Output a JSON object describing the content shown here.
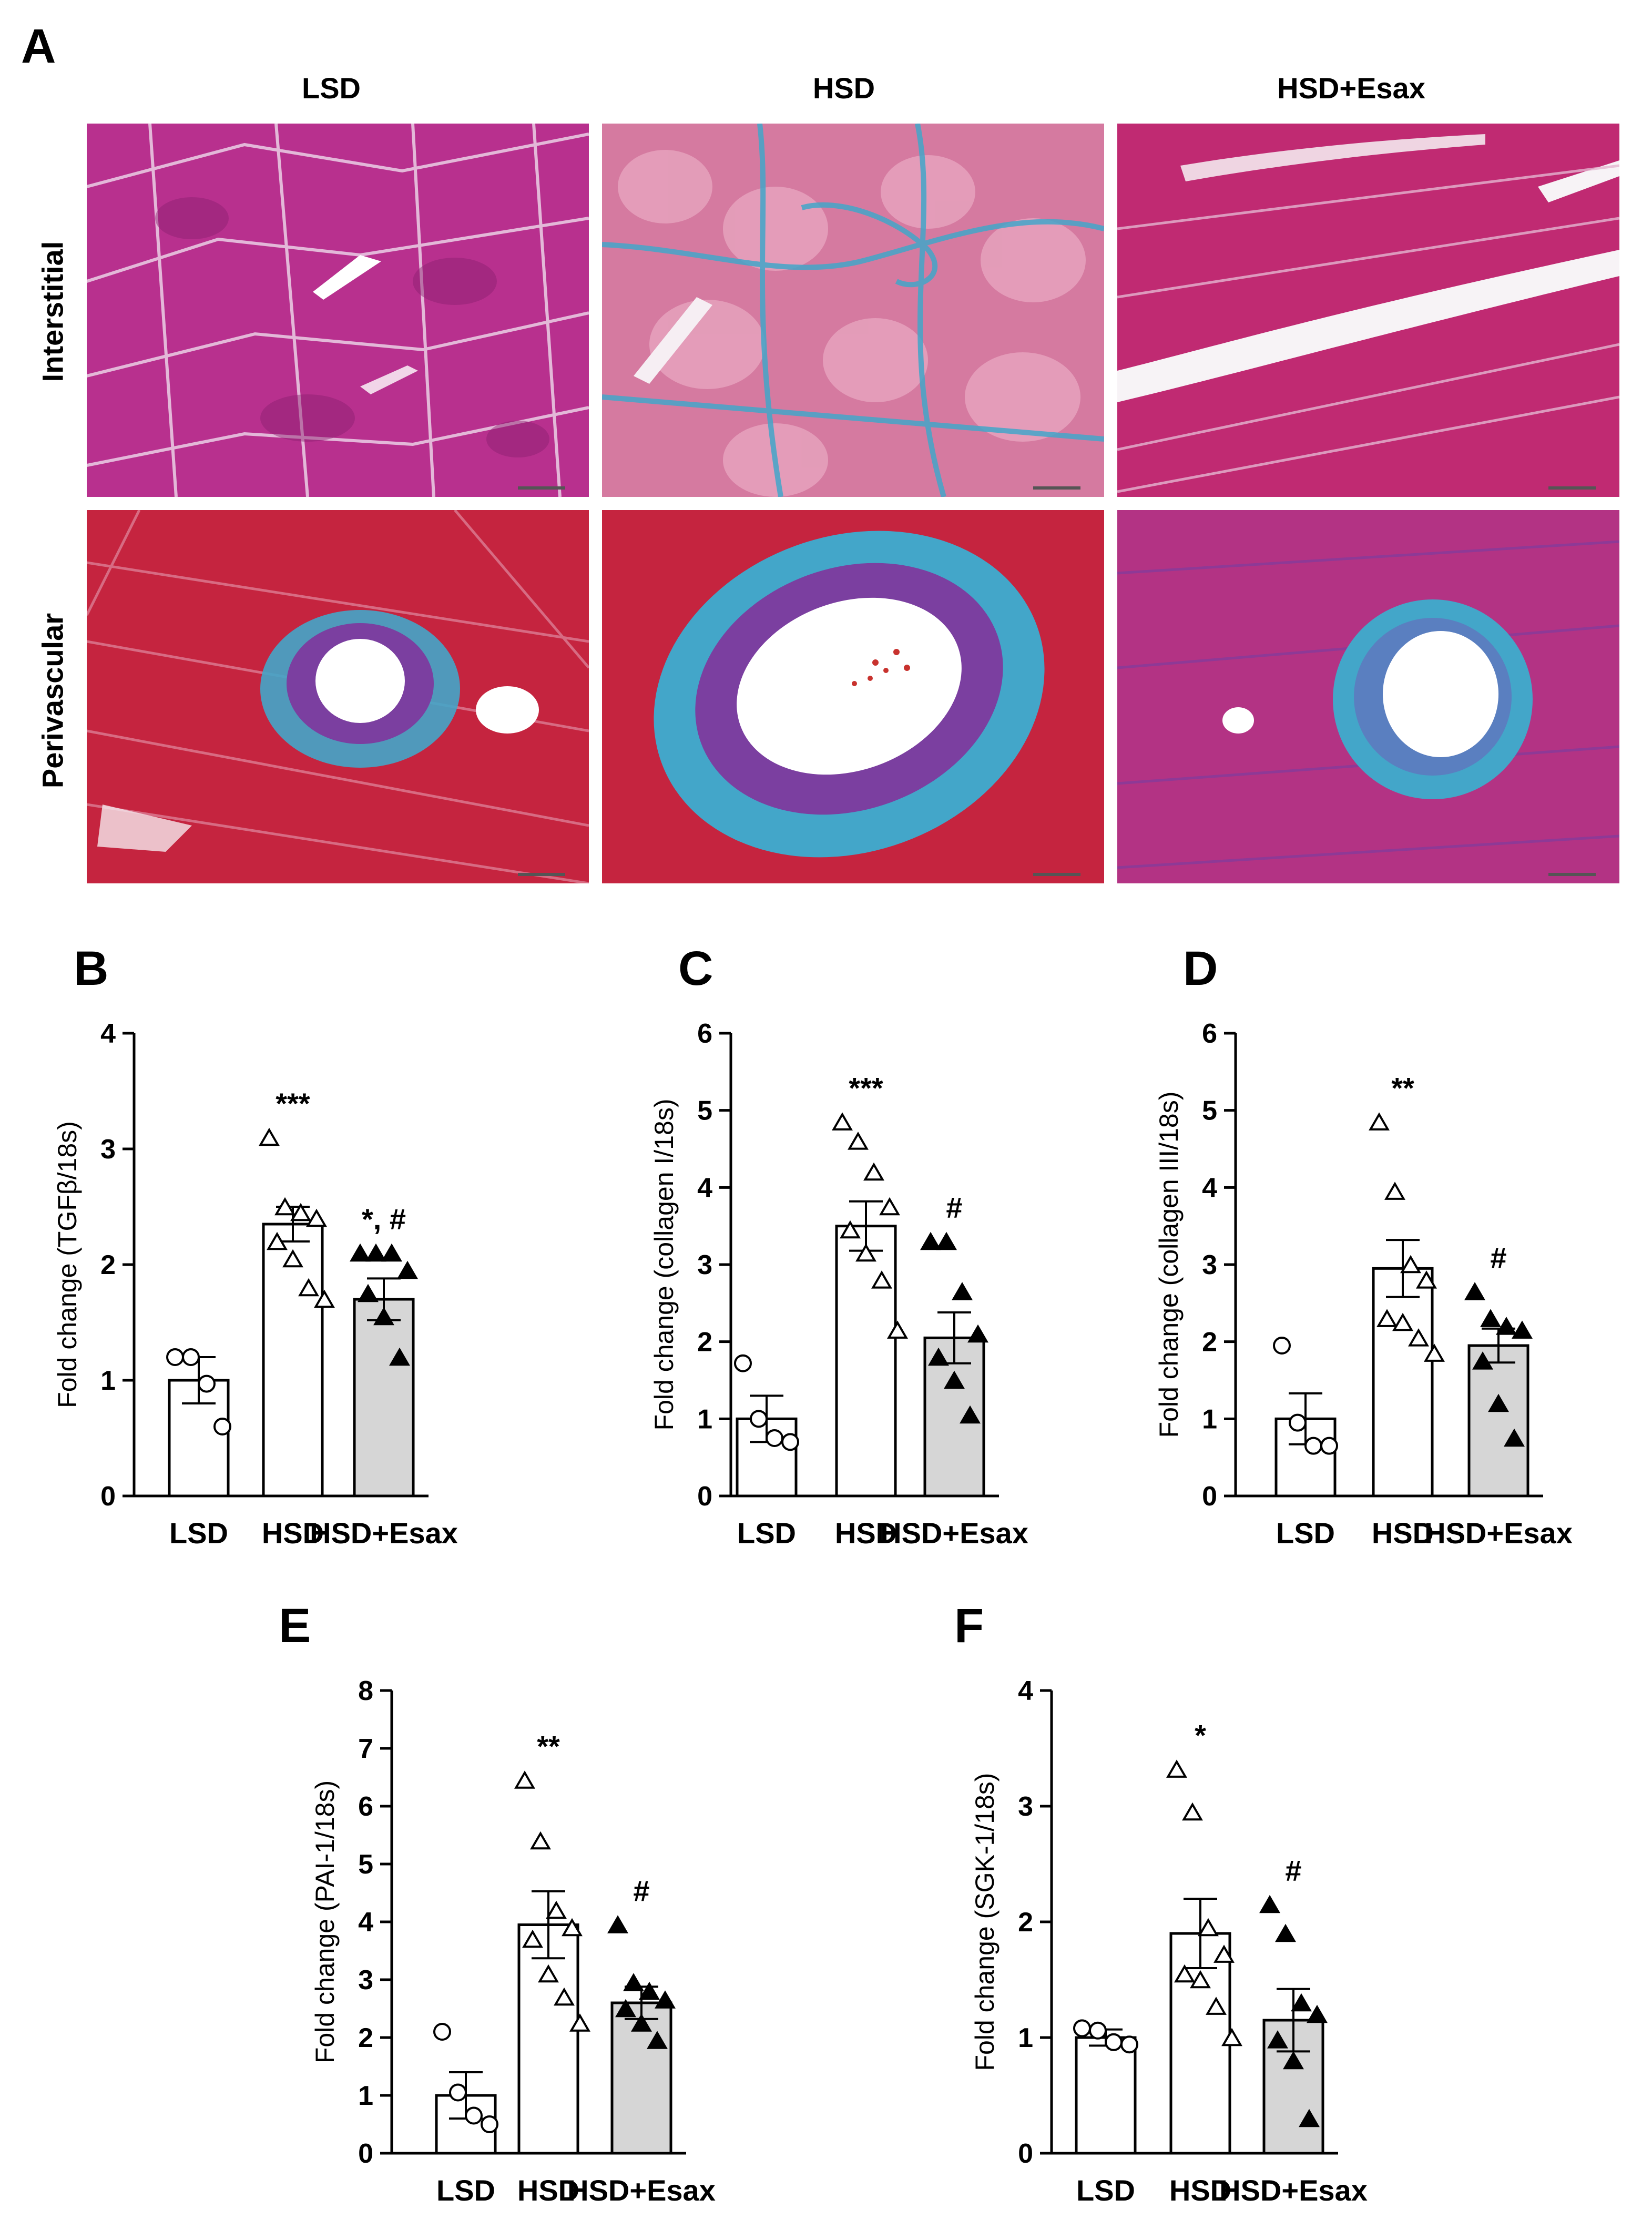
{
  "panel_letters": {
    "a": "A",
    "b": "B",
    "c": "C",
    "d": "D",
    "e": "E",
    "f": "F"
  },
  "micrograph": {
    "columns": [
      "LSD",
      "HSD",
      "HSD+Esax"
    ],
    "rows": [
      "Interstitial",
      "Perivascular"
    ]
  },
  "colors": {
    "muscle_magenta": "#b8308e",
    "muscle_red": "#c5243f",
    "collagen_blue": "#43a6c9",
    "bar_gray": "#d6d6d6"
  },
  "chart_data": [
    {
      "panel": "B",
      "type": "bar",
      "categories": [
        "LSD",
        "HSD",
        "HSD+Esax"
      ],
      "ylabel": "Fold change (TGFβ/18s)",
      "ylim": [
        0,
        4
      ],
      "yticks": [
        0,
        1,
        2,
        3,
        4
      ],
      "means": [
        1.0,
        2.35,
        1.7
      ],
      "sem": [
        0.2,
        0.15,
        0.18
      ],
      "points": [
        [
          1.2,
          1.2,
          0.97,
          0.6
        ],
        [
          3.1,
          2.5,
          2.45,
          2.4,
          2.2,
          2.05,
          1.8,
          1.7
        ],
        [
          2.1,
          2.1,
          2.1,
          1.95,
          1.75,
          1.55,
          1.2
        ]
      ],
      "significance": [
        "",
        "***",
        "*, #"
      ]
    },
    {
      "panel": "C",
      "type": "bar",
      "categories": [
        "LSD",
        "HSD",
        "HSD+Esax"
      ],
      "ylabel": "Fold change (collagen I/18s)",
      "ylim": [
        0,
        6
      ],
      "yticks": [
        0,
        1,
        2,
        3,
        4,
        5,
        6
      ],
      "means": [
        1.0,
        3.5,
        2.05
      ],
      "sem": [
        0.3,
        0.32,
        0.33
      ],
      "points": [
        [
          1.72,
          1.0,
          0.75,
          0.7
        ],
        [
          4.85,
          4.6,
          4.2,
          3.75,
          3.45,
          3.15,
          2.8,
          2.15
        ],
        [
          3.3,
          3.3,
          2.65,
          2.1,
          1.8,
          1.5,
          1.05
        ]
      ],
      "significance": [
        "",
        "***",
        "#"
      ]
    },
    {
      "panel": "D",
      "type": "bar",
      "categories": [
        "LSD",
        "HSD",
        "HSD+Esax"
      ],
      "ylabel": "Fold change (collagen III/18s)",
      "ylim": [
        0,
        6
      ],
      "yticks": [
        0,
        1,
        2,
        3,
        4,
        5,
        6
      ],
      "means": [
        1.0,
        2.95,
        1.95
      ],
      "sem": [
        0.33,
        0.37,
        0.22
      ],
      "points": [
        [
          1.95,
          0.95,
          0.65,
          0.65
        ],
        [
          4.85,
          3.95,
          3.0,
          2.8,
          2.3,
          2.25,
          2.05,
          1.85
        ],
        [
          2.65,
          2.3,
          2.2,
          2.15,
          1.75,
          1.2,
          0.75
        ]
      ],
      "significance": [
        "",
        "**",
        "#"
      ]
    },
    {
      "panel": "E",
      "type": "bar",
      "categories": [
        "LSD",
        "HSD",
        "HSD+Esax"
      ],
      "ylabel": "Fold change (PAI-1/18s)",
      "ylim": [
        0,
        8
      ],
      "yticks": [
        0,
        1,
        2,
        3,
        4,
        5,
        6,
        7,
        8
      ],
      "means": [
        1.0,
        3.95,
        2.6
      ],
      "sem": [
        0.4,
        0.58,
        0.28
      ],
      "points": [
        [
          2.1,
          1.05,
          0.65,
          0.5
        ],
        [
          6.45,
          5.4,
          4.2,
          3.9,
          3.7,
          3.1,
          2.7,
          2.25
        ],
        [
          3.95,
          2.95,
          2.8,
          2.65,
          2.5,
          2.25,
          1.95
        ]
      ],
      "significance": [
        "",
        "**",
        "#"
      ]
    },
    {
      "panel": "F",
      "type": "bar",
      "categories": [
        "LSD",
        "HSD",
        "HSD+Esax"
      ],
      "ylabel": "Fold change (SGK-1/18s)",
      "ylim": [
        0,
        4
      ],
      "yticks": [
        0,
        1,
        2,
        3,
        4
      ],
      "means": [
        1.0,
        1.9,
        1.15
      ],
      "sem": [
        0.07,
        0.3,
        0.27
      ],
      "points": [
        [
          1.08,
          1.06,
          0.96,
          0.94
        ],
        [
          3.32,
          2.95,
          1.95,
          1.72,
          1.55,
          1.5,
          1.27,
          1.0
        ],
        [
          2.15,
          1.9,
          1.3,
          1.2,
          0.98,
          0.8,
          0.3
        ]
      ],
      "significance": [
        "",
        "*",
        "#"
      ]
    }
  ]
}
